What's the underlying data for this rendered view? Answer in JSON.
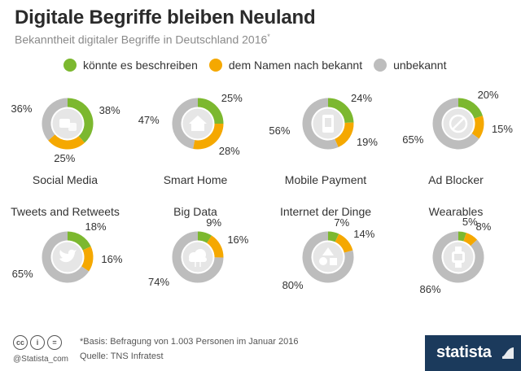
{
  "header": {
    "title": "Digitale Begriffe bleiben Neuland",
    "subtitle": "Bekanntheit digitaler Begriffe in Deutschland 2016",
    "subtitle_mark": "*"
  },
  "legend": [
    {
      "label": "könnte es beschreiben",
      "color": "#7cb82f"
    },
    {
      "label": "dem Namen nach bekannt",
      "color": "#f5a800"
    },
    {
      "label": "unbekannt",
      "color": "#bdbdbd"
    }
  ],
  "colors": {
    "green": "#7cb82f",
    "orange": "#f5a800",
    "grey": "#bdbdbd",
    "icon_bg": "#e6e6e6",
    "icon_fg": "#ffffff"
  },
  "chart_data": {
    "type": "donut",
    "series": [
      "könnte es beschreiben",
      "dem Namen nach bekannt",
      "unbekannt"
    ],
    "charts": [
      {
        "name": "Social Media",
        "icon": "social-media-icon",
        "values": [
          38,
          25,
          36
        ],
        "labels": [
          "38%",
          "25%",
          "36%"
        ]
      },
      {
        "name": "Smart Home",
        "icon": "smart-home-icon",
        "values": [
          25,
          28,
          47
        ],
        "labels": [
          "25%",
          "28%",
          "47%"
        ]
      },
      {
        "name": "Mobile Payment",
        "icon": "mobile-payment-icon",
        "values": [
          24,
          19,
          56
        ],
        "labels": [
          "24%",
          "19%",
          "56%"
        ]
      },
      {
        "name": "Ad Blocker",
        "icon": "ad-blocker-icon",
        "values": [
          20,
          15,
          65
        ],
        "labels": [
          "20%",
          "15%",
          "65%"
        ]
      },
      {
        "name": "Tweets and Retweets",
        "icon": "twitter-bird-icon",
        "values": [
          18,
          16,
          65
        ],
        "labels": [
          "18%",
          "16%",
          "65%"
        ]
      },
      {
        "name": "Big Data",
        "icon": "cloud-data-icon",
        "values": [
          9,
          16,
          74
        ],
        "labels": [
          "9%",
          "16%",
          "74%"
        ]
      },
      {
        "name": "Internet der Dinge",
        "icon": "iot-shapes-icon",
        "values": [
          7,
          14,
          80
        ],
        "labels": [
          "7%",
          "14%",
          "80%"
        ]
      },
      {
        "name": "Wearables",
        "icon": "smartwatch-icon",
        "values": [
          5,
          8,
          86
        ],
        "labels": [
          "5%",
          "8%",
          "86%"
        ]
      }
    ]
  },
  "footer": {
    "note": "*Basis: Befragung von 1.003 Personen im Januar 2016",
    "source": "Quelle: TNS Infratest",
    "handle": "@Statista_com",
    "brand": "statista",
    "cc_icons": [
      "cc",
      "i",
      "="
    ]
  }
}
